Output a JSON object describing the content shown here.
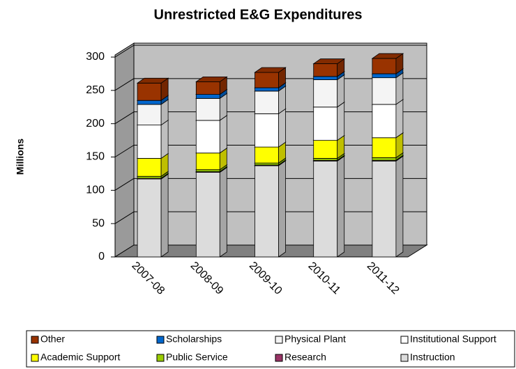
{
  "chart_data": {
    "type": "bar3d_stacked",
    "title": "Unrestricted E&G Expenditures",
    "y_label": "Millions",
    "categories": [
      "2007-08",
      "2008-09",
      "2009-10",
      "2010-11",
      "2011-12"
    ],
    "series": [
      {
        "name": "Instruction",
        "color": "#dcdcdc",
        "values": [
          117,
          127,
          137,
          144,
          144
        ]
      },
      {
        "name": "Research",
        "color": "#993366",
        "values": [
          1,
          1,
          1,
          1,
          1
        ]
      },
      {
        "name": "Public Service",
        "color": "#99cc00",
        "values": [
          3,
          3,
          3,
          3,
          4
        ]
      },
      {
        "name": "Academic Support",
        "color": "#ffff00",
        "values": [
          27,
          25,
          24,
          27,
          30
        ]
      },
      {
        "name": "Institutional Support",
        "color": "#ffffff",
        "values": [
          50,
          49,
          50,
          50,
          50
        ]
      },
      {
        "name": "Physical Plant",
        "color": "#f4f4f4",
        "values": [
          31,
          33,
          34,
          41,
          40
        ]
      },
      {
        "name": "Scholarships",
        "color": "#0066cc",
        "values": [
          6,
          6,
          5,
          5,
          6
        ]
      },
      {
        "name": "Other",
        "color": "#993300",
        "values": [
          26,
          19,
          23,
          19,
          23
        ]
      }
    ],
    "ylim": [
      0,
      300
    ],
    "yticks": [
      0,
      50,
      100,
      150,
      200,
      250,
      300
    ],
    "grid": true
  }
}
